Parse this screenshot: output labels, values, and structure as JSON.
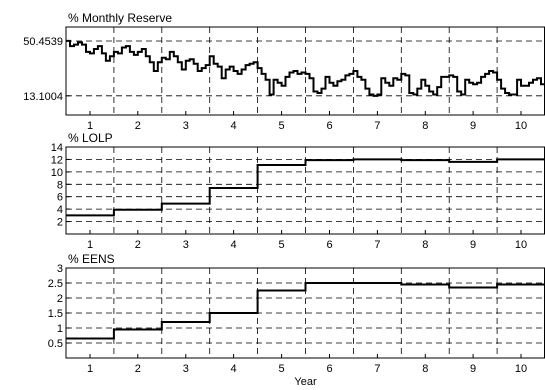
{
  "chart_data": [
    {
      "type": "line",
      "title": "% Monthly Reserve",
      "xlabel": "",
      "ylabel": "",
      "x_tick_labels": [
        "1",
        "2",
        "3",
        "4",
        "5",
        "6",
        "7",
        "8",
        "9",
        "10"
      ],
      "xlim": [
        0.5,
        10.5
      ],
      "ylim": [
        0,
        60
      ],
      "y_tick_values": [
        13.1004,
        50.4539
      ],
      "y_tick_labels": [
        "13.1004",
        "50.4539"
      ],
      "grid": true,
      "series": [
        {
          "step": true,
          "values": [
            50.5,
            47,
            48,
            49.5,
            48,
            43,
            42,
            45,
            47,
            42,
            37,
            40,
            43,
            42,
            46,
            47,
            43,
            41,
            43,
            45,
            40,
            36,
            30,
            36,
            39,
            38,
            43,
            40,
            36,
            31,
            37,
            38,
            35,
            30,
            32,
            34,
            40,
            35,
            33,
            25,
            31,
            33,
            30,
            28,
            31,
            34,
            35,
            36,
            32,
            28,
            24,
            14,
            24,
            22,
            20,
            26,
            29,
            30,
            28,
            29,
            28,
            25,
            16,
            15,
            18,
            26,
            22,
            20,
            23,
            24,
            27,
            28,
            30,
            26,
            24,
            18,
            14,
            13,
            14,
            25,
            22,
            20,
            25,
            24,
            28,
            27,
            15,
            14,
            18,
            24,
            20,
            16,
            14,
            19,
            26,
            26,
            27,
            26,
            16,
            14,
            24,
            22,
            21,
            22,
            26,
            28,
            30,
            29,
            24,
            18,
            15,
            14,
            14,
            24,
            20,
            20,
            22,
            24,
            25,
            21
          ]
        }
      ]
    },
    {
      "type": "line",
      "title": "% LOLP",
      "xlabel": "",
      "ylabel": "",
      "x_tick_labels": [
        "1",
        "2",
        "3",
        "4",
        "5",
        "6",
        "7",
        "8",
        "9",
        "10"
      ],
      "xlim": [
        0.5,
        10.5
      ],
      "ylim": [
        0,
        14
      ],
      "y_tick_values": [
        2,
        4,
        6,
        8,
        10,
        12,
        14
      ],
      "y_tick_labels": [
        "2",
        "4",
        "6",
        "8",
        "10",
        "12",
        "14"
      ],
      "grid": true,
      "series": [
        {
          "step": true,
          "x": [
            1,
            2,
            3,
            4,
            5,
            6,
            7,
            8,
            9,
            10
          ],
          "values": [
            3.0,
            3.9,
            4.9,
            7.4,
            11.1,
            11.9,
            12.0,
            11.9,
            11.6,
            12.0
          ]
        }
      ]
    },
    {
      "type": "line",
      "title": "% EENS",
      "xlabel": "Year",
      "ylabel": "",
      "x_tick_labels": [
        "1",
        "2",
        "3",
        "4",
        "5",
        "6",
        "7",
        "8",
        "9",
        "10"
      ],
      "xlim": [
        0.5,
        10.5
      ],
      "ylim": [
        0,
        3
      ],
      "y_tick_values": [
        0.5,
        1,
        1.5,
        2,
        2.5,
        3
      ],
      "y_tick_labels": [
        "0.5",
        "1",
        "1.5",
        "2",
        "2.5",
        "3"
      ],
      "grid": true,
      "series": [
        {
          "step": true,
          "x": [
            1,
            2,
            3,
            4,
            5,
            6,
            7,
            8,
            9,
            10
          ],
          "values": [
            0.65,
            0.95,
            1.2,
            1.5,
            2.25,
            2.5,
            2.5,
            2.45,
            2.35,
            2.45
          ]
        }
      ]
    }
  ]
}
